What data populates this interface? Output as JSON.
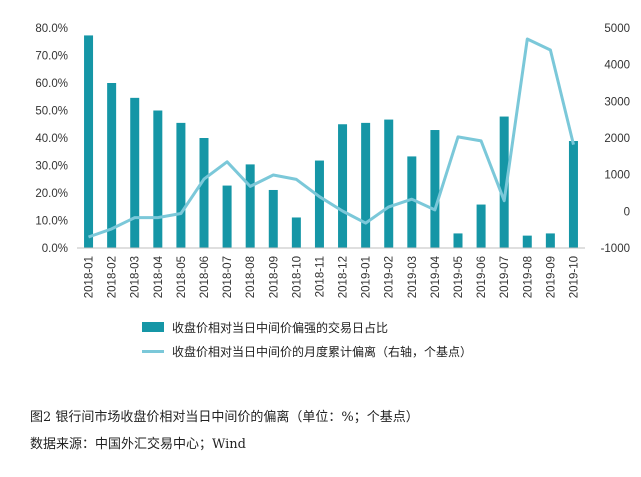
{
  "chart_data": {
    "type": "bar+line",
    "categories": [
      "2018-01",
      "2018-02",
      "2018-03",
      "2018-04",
      "2018-05",
      "2018-06",
      "2018-07",
      "2018-08",
      "2018-09",
      "2018-10",
      "2018-11",
      "2018-12",
      "2019-01",
      "2019-02",
      "2019-03",
      "2019-04",
      "2019-05",
      "2019-06",
      "2019-07",
      "2019-08",
      "2019-09",
      "2019-10"
    ],
    "series": [
      {
        "name": "收盘价相对当日中间价偏强的交易日占比",
        "kind": "bar",
        "axis": "left",
        "values": [
          77.3,
          60.0,
          54.6,
          50.0,
          45.5,
          40.0,
          22.7,
          30.4,
          21.1,
          11.1,
          31.8,
          45.0,
          45.5,
          46.7,
          33.3,
          42.9,
          5.3,
          15.8,
          47.8,
          4.5,
          5.3,
          38.9
        ]
      },
      {
        "name": "收盘价相对当日中间价的月度累计偏离（右轴，个基点）",
        "kind": "line",
        "axis": "right",
        "values": [
          -700,
          -480,
          -170,
          -170,
          -60,
          880,
          1350,
          680,
          990,
          870,
          400,
          10,
          -320,
          120,
          330,
          40,
          2030,
          1920,
          290,
          4700,
          4400,
          1820
        ]
      }
    ],
    "left_axis": {
      "min": 0,
      "max": 80,
      "step": 10,
      "tick_labels": [
        "0.0%",
        "10.0%",
        "20.0%",
        "30.0%",
        "40.0%",
        "50.0%",
        "60.0%",
        "70.0%",
        "80.0%"
      ]
    },
    "right_axis": {
      "min": -1000,
      "max": 5000,
      "step": 1000,
      "tick_labels": [
        "-1000",
        "0",
        "1000",
        "2000",
        "3000",
        "4000",
        "5000"
      ]
    },
    "grid": false,
    "legend_placement": "bottom"
  },
  "colors": {
    "bar": "#1596a6",
    "line": "#7bc8d9",
    "axis": "#bfbfbf"
  },
  "caption": "图2  银行间市场收盘价相对当日中间价的偏离（单位：%；个基点）",
  "source": "数据来源：中国外汇交易中心；Wind"
}
